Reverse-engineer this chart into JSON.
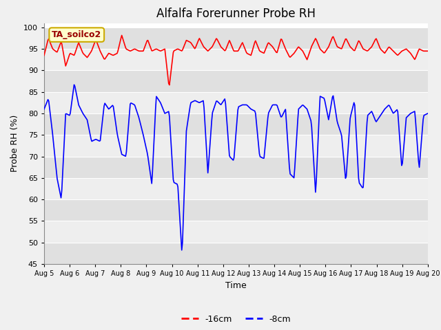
{
  "title": "Alfalfa Forerunner Probe RH",
  "ylabel": "Probe RH (%)",
  "xlabel": "Time",
  "ylim": [
    45,
    101
  ],
  "yticks": [
    45,
    50,
    55,
    60,
    65,
    70,
    75,
    80,
    85,
    90,
    95,
    100
  ],
  "fig_bg_color": "#f0f0f0",
  "plot_bg_color": "#ffffff",
  "band_color_dark": "#e0e0e0",
  "band_color_light": "#eeeeee",
  "legend_label_red": "-16cm",
  "legend_label_blue": "-8cm",
  "annotation_label": "TA_soilco2",
  "annotation_bg": "#ffffcc",
  "annotation_border": "#ccaa00",
  "red_color": "#ff0000",
  "blue_color": "#0000ff",
  "title_fontsize": 12,
  "axis_fontsize": 9,
  "tick_fontsize": 8,
  "xstart_day": 5,
  "xend_day": 20,
  "red_ctrl": [
    93.5,
    97.5,
    95.0,
    94.2,
    96.8,
    91.0,
    94.0,
    93.5,
    96.5,
    94.0,
    93.0,
    94.5,
    97.2,
    94.5,
    92.5,
    94.0,
    93.5,
    94.0,
    98.2,
    95.0,
    94.5,
    95.0,
    94.5,
    94.5,
    97.2,
    94.5,
    95.0,
    94.5,
    95.0,
    86.0,
    94.5,
    95.0,
    94.5,
    97.0,
    96.5,
    95.0,
    97.5,
    95.5,
    94.5,
    95.5,
    97.5,
    95.5,
    94.5,
    97.0,
    94.5,
    94.5,
    96.5,
    94.0,
    93.5,
    97.0,
    94.5,
    94.0,
    96.5,
    95.5,
    94.0,
    97.5,
    95.0,
    93.0,
    94.0,
    95.5,
    94.5,
    92.5,
    95.5,
    97.5,
    95.0,
    94.0,
    95.5,
    98.0,
    95.5,
    95.0,
    97.5,
    95.5,
    94.5,
    97.0,
    95.0,
    94.5,
    95.5,
    97.5,
    95.0,
    94.0,
    95.5,
    94.5,
    93.5,
    94.5,
    95.0,
    94.0,
    92.5,
    95.0,
    94.5,
    94.5
  ],
  "blue_ctrl": [
    81.0,
    83.5,
    75.0,
    65.0,
    60.0,
    80.0,
    79.5,
    87.0,
    82.0,
    80.0,
    78.5,
    73.5,
    74.0,
    73.5,
    82.5,
    81.0,
    82.0,
    75.0,
    70.5,
    70.0,
    82.5,
    82.0,
    79.0,
    75.0,
    70.5,
    63.5,
    84.0,
    82.5,
    80.0,
    80.5,
    64.0,
    63.5,
    47.0,
    76.0,
    82.5,
    83.0,
    82.5,
    83.0,
    66.0,
    80.0,
    83.0,
    82.0,
    83.5,
    70.0,
    69.0,
    81.5,
    82.0,
    82.0,
    81.0,
    80.5,
    70.0,
    69.5,
    80.0,
    82.0,
    82.0,
    79.0,
    81.0,
    66.0,
    65.0,
    81.0,
    82.0,
    81.0,
    78.0,
    61.0,
    84.0,
    83.5,
    78.5,
    84.5,
    78.0,
    75.0,
    64.0,
    79.0,
    83.0,
    64.0,
    62.5,
    79.5,
    80.5,
    78.0,
    79.5,
    81.0,
    82.0,
    80.0,
    81.0,
    67.0,
    79.0,
    80.0,
    80.5,
    67.0,
    79.5,
    80.0
  ]
}
